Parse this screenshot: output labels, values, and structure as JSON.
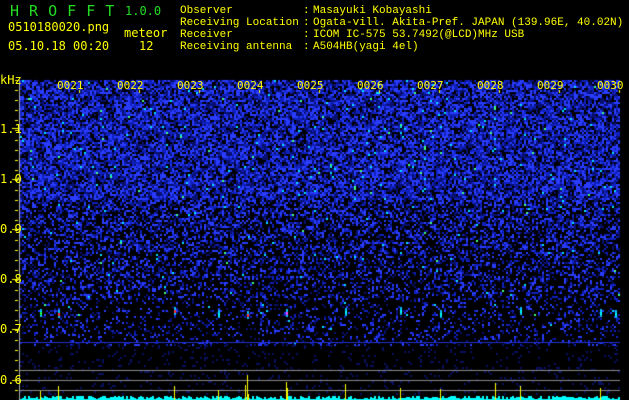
{
  "header": {
    "app_name": "H R O F F T",
    "version": "1.0.0",
    "filename": "0510180020.png",
    "datetime": "05.10.18 00:20",
    "meteor_label": "meteor",
    "meteor_count": "12"
  },
  "info": [
    {
      "label": "Observer",
      "sep": ":",
      "value": "Masayuki Kobayashi"
    },
    {
      "label": "Receiving Location",
      "sep": ":",
      "value": "Ogata-vill. Akita-Pref. JAPAN (139.96E, 40.02N)"
    },
    {
      "label": "Receiver",
      "sep": ":",
      "value": "ICOM IC-575 53.7492(@LCD)MHz USB"
    },
    {
      "label": "Receiving antenna",
      "sep": ":",
      "value": "A504HB(yagi 4el)"
    }
  ],
  "chart_data": {
    "type": "heatmap",
    "ylabel": "kHz",
    "y_ticks": [
      "1.1",
      "1.0",
      "0.9",
      "0.8",
      "0.7",
      "0.6"
    ],
    "ylim": [
      0.56,
      1.2
    ],
    "x_ticks": [
      "0021",
      "0022",
      "0023",
      "0024",
      "0025",
      "0026",
      "0027",
      "0028",
      "0029",
      "0030"
    ],
    "colors": {
      "background": "#000000",
      "noise": "#1a2aff",
      "text": "#ffff00",
      "count_bars": "#ffff00",
      "level_bars": "#00ffff",
      "grid": "#888888"
    }
  }
}
